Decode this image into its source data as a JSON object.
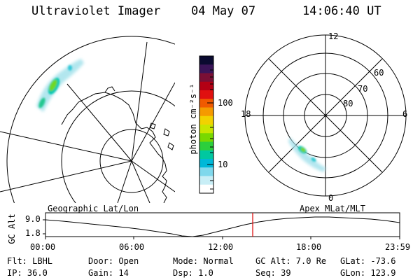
{
  "header": {
    "title": "Ultraviolet Imager",
    "date": "04 May 07",
    "time": "14:06:40 UT"
  },
  "colorbar": {
    "unit_label": "photon cm⁻²s⁻¹",
    "tick_labels": [
      "100",
      "10"
    ],
    "colors": [
      "#0a0a30",
      "#3a1458",
      "#7a0f35",
      "#b40014",
      "#e01010",
      "#f05a00",
      "#f59a00",
      "#f2d200",
      "#c8e600",
      "#78d800",
      "#2ccf3c",
      "#00c8a0",
      "#00b8d8",
      "#7fd8ec",
      "#c8eef6",
      "#ffffff"
    ]
  },
  "geographic_panel": {
    "label": "Geographic Lat/Lon"
  },
  "polar_panel": {
    "label": "Apex MLat/MLT",
    "mlt_labels": {
      "top": "12",
      "left": "18",
      "right": "6",
      "bottom": "0"
    },
    "mlat_labels": [
      "60",
      "70",
      "80"
    ]
  },
  "altitude_plot": {
    "ylabel": "GC Alt",
    "y_ticks": [
      "9.0",
      "1.8"
    ],
    "x_ticks": [
      "00:00",
      "06:00",
      "12:00",
      "18:00",
      "23:59"
    ],
    "current_time": "14:06:40",
    "marker_color": "#dd0000"
  },
  "status": {
    "flt": "Flt: LBHL",
    "ip": "IP: 36.0",
    "door": "Door: Open",
    "gain": "Gain: 14",
    "mode": "Mode: Normal",
    "dsp": "Dsp:    1.0",
    "gc_alt": "GC Alt: 7.0 Re",
    "seq": "Seq: 39",
    "glat": "GLat: -73.6",
    "glon": "GLon: 123.9"
  }
}
